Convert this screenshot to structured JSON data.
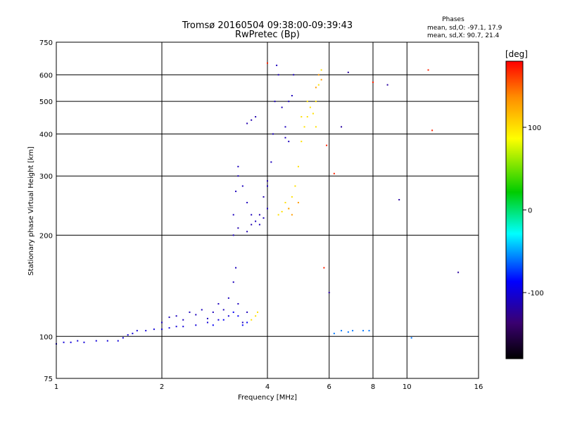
{
  "chart_data": {
    "type": "scatter",
    "title": "Tromsø 20160504 09:38:00-09:39:43",
    "subtitle": "RwPretec (Bp)",
    "xlabel": "Frequency [MHz]",
    "ylabel": "Stationary phase Virtual Height [km]",
    "x_scale": "log",
    "y_scale": "log",
    "xlim": [
      1,
      16
    ],
    "ylim": [
      75,
      750
    ],
    "x_ticks": [
      1,
      2,
      4,
      6,
      8,
      10,
      16
    ],
    "y_ticks": [
      75,
      100,
      200,
      300,
      400,
      500,
      600,
      750
    ],
    "grid": true,
    "info": {
      "heading": "Phases",
      "line1": "mean, sd,O: -97.1, 17.9",
      "line2": "mean, sd,X:  90.7, 21.4"
    },
    "colorbar": {
      "label": "[deg]",
      "range": [
        -180,
        180
      ],
      "ticks": [
        100,
        0,
        -100
      ],
      "colormap": "rainbow"
    },
    "series": [
      {
        "phase": -100,
        "points": [
          [
            1.0,
            95
          ],
          [
            1.05,
            96
          ],
          [
            1.1,
            96
          ],
          [
            1.15,
            97
          ],
          [
            1.2,
            96
          ],
          [
            1.3,
            97
          ],
          [
            1.4,
            97
          ],
          [
            1.5,
            97
          ],
          [
            1.55,
            99
          ],
          [
            1.6,
            101
          ],
          [
            1.65,
            102
          ],
          [
            1.7,
            104
          ],
          [
            1.8,
            104
          ],
          [
            1.9,
            105
          ],
          [
            2.0,
            105
          ],
          [
            2.1,
            106
          ],
          [
            2.2,
            107
          ],
          [
            2.3,
            107
          ],
          [
            2.5,
            108
          ],
          [
            2.7,
            110
          ],
          [
            2.9,
            112
          ],
          [
            3.1,
            115
          ]
        ]
      },
      {
        "phase": -110,
        "points": [
          [
            2.0,
            110
          ],
          [
            2.1,
            114
          ],
          [
            2.2,
            115
          ],
          [
            2.3,
            112
          ],
          [
            2.4,
            118
          ],
          [
            2.5,
            116
          ],
          [
            2.6,
            120
          ],
          [
            2.7,
            113
          ],
          [
            2.8,
            118
          ],
          [
            2.9,
            125
          ],
          [
            3.0,
            120
          ],
          [
            3.1,
            130
          ],
          [
            3.2,
            145
          ],
          [
            3.25,
            160
          ],
          [
            3.3,
            125
          ],
          [
            3.4,
            110
          ],
          [
            3.5,
            118
          ]
        ]
      },
      {
        "phase": -90,
        "points": [
          [
            2.8,
            108
          ],
          [
            3.0,
            112
          ],
          [
            3.2,
            118
          ],
          [
            3.3,
            115
          ],
          [
            3.5,
            110
          ],
          [
            3.4,
            108
          ]
        ]
      },
      {
        "phase": -110,
        "points": [
          [
            3.2,
            200
          ],
          [
            3.2,
            230
          ],
          [
            3.25,
            270
          ],
          [
            3.3,
            300
          ],
          [
            3.3,
            320
          ],
          [
            3.4,
            280
          ],
          [
            3.5,
            250
          ],
          [
            3.6,
            230
          ],
          [
            3.7,
            220
          ],
          [
            3.8,
            215
          ],
          [
            3.9,
            225
          ],
          [
            4.0,
            240
          ],
          [
            4.0,
            280
          ],
          [
            4.1,
            330
          ],
          [
            4.15,
            400
          ],
          [
            4.2,
            500
          ],
          [
            4.25,
            640
          ],
          [
            4.3,
            600
          ],
          [
            4.4,
            480
          ],
          [
            4.5,
            420
          ],
          [
            4.6,
            500
          ],
          [
            4.7,
            520
          ],
          [
            4.75,
            600
          ],
          [
            4.6,
            380
          ],
          [
            4.5,
            390
          ]
        ]
      },
      {
        "phase": -115,
        "points": [
          [
            3.3,
            210
          ],
          [
            3.5,
            205
          ],
          [
            3.6,
            215
          ],
          [
            3.8,
            230
          ],
          [
            3.9,
            260
          ],
          [
            4.0,
            290
          ],
          [
            3.5,
            430
          ],
          [
            3.6,
            440
          ],
          [
            3.7,
            450
          ]
        ]
      },
      {
        "phase": 100,
        "points": [
          [
            4.3,
            230
          ],
          [
            4.4,
            235
          ],
          [
            4.5,
            250
          ],
          [
            4.6,
            240
          ],
          [
            4.7,
            260
          ],
          [
            4.8,
            280
          ],
          [
            4.9,
            320
          ],
          [
            5.0,
            380
          ],
          [
            5.1,
            420
          ],
          [
            5.2,
            450
          ],
          [
            5.3,
            480
          ],
          [
            5.4,
            460
          ],
          [
            5.5,
            500
          ],
          [
            5.6,
            560
          ],
          [
            5.7,
            620
          ],
          [
            5.5,
            420
          ],
          [
            5.0,
            450
          ],
          [
            5.2,
            500
          ],
          [
            3.6,
            112
          ],
          [
            3.7,
            115
          ],
          [
            3.75,
            118
          ]
        ]
      },
      {
        "phase": 130,
        "points": [
          [
            5.5,
            550
          ],
          [
            5.7,
            580
          ],
          [
            5.6,
            600
          ],
          [
            4.6,
            240
          ],
          [
            4.7,
            230
          ],
          [
            4.9,
            250
          ]
        ]
      },
      {
        "phase": -60,
        "points": [
          [
            6.2,
            102
          ],
          [
            6.5,
            104
          ],
          [
            7.0,
            104
          ],
          [
            7.5,
            104
          ],
          [
            7.8,
            104
          ],
          [
            6.8,
            103
          ],
          [
            10.3,
            99
          ]
        ]
      },
      {
        "phase": 170,
        "points": [
          [
            4.0,
            650
          ],
          [
            5.8,
            160
          ],
          [
            5.9,
            370
          ],
          [
            11.5,
            620
          ],
          [
            11.8,
            410
          ],
          [
            8.0,
            570
          ],
          [
            6.2,
            305
          ]
        ]
      },
      {
        "phase": -120,
        "points": [
          [
            8.8,
            560
          ],
          [
            9.5,
            255
          ],
          [
            6.0,
            135
          ],
          [
            6.5,
            420
          ],
          [
            6.8,
            610
          ],
          [
            14.0,
            155
          ]
        ]
      }
    ]
  }
}
